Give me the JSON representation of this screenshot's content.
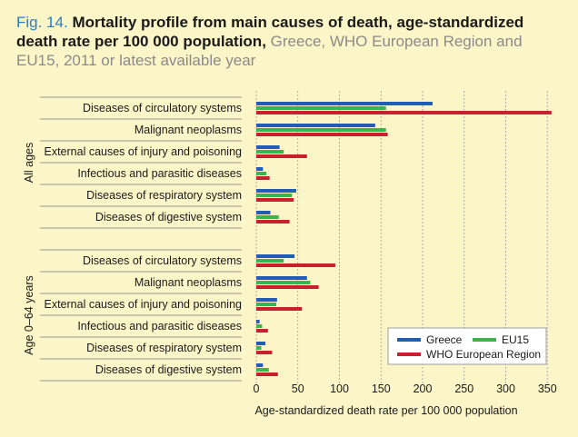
{
  "figure": {
    "fig_number": "Fig. 14.",
    "title_main": "Mortality profile from main causes of death, age-standardized death rate per 100 000 population,",
    "title_sub": "Greece, WHO European Region and EU15, 2011 or latest available year"
  },
  "colors": {
    "background": "#fcf5c8",
    "greece": "#1f5fb0",
    "eu15": "#3db34a",
    "who": "#c8202e",
    "grid": "#9a9a9a"
  },
  "chart_data": {
    "type": "bar",
    "orientation": "horizontal",
    "xlabel": "Age-standardized death rate per 100 000 population",
    "xlim": [
      0,
      350
    ],
    "xticks": [
      0,
      50,
      100,
      150,
      200,
      250,
      300,
      350
    ],
    "grid": true,
    "legend_position": "bottom-right",
    "categories": [
      "Diseases of circulatory systems",
      "Malignant neoplasms",
      "External causes of injury and poisoning",
      "Infectious and parasitic diseases",
      "Diseases of respiratory system",
      "Diseases of digestive system"
    ],
    "groups": [
      {
        "label": "All ages",
        "series": [
          {
            "name": "Greece",
            "values": [
              212,
              143,
              28,
              8,
              48,
              17
            ]
          },
          {
            "name": "EU15",
            "values": [
              156,
              156,
              33,
              12,
              43,
              27
            ]
          },
          {
            "name": "WHO European Region",
            "values": [
              355,
              158,
              61,
              16,
              45,
              40
            ]
          }
        ]
      },
      {
        "label": "Age 0–64 years",
        "series": [
          {
            "name": "Greece",
            "values": [
              46,
              61,
              25,
              4,
              11,
              8
            ]
          },
          {
            "name": "EU15",
            "values": [
              33,
              65,
              24,
              7,
              6,
              15
            ]
          },
          {
            "name": "WHO European Region",
            "values": [
              95,
              75,
              55,
              14,
              19,
              26
            ]
          }
        ]
      }
    ]
  }
}
